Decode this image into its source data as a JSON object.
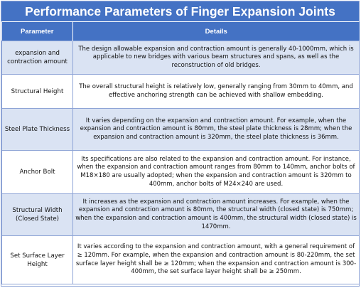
{
  "title": "Performance Parameters of Finger Expansion Joints",
  "table": {
    "headers": [
      "Parameter",
      "Details"
    ],
    "rows": [
      {
        "parameter": "expansion and contraction amount",
        "details": "The design allowable expansion and contraction amount is generally 40-1000mm, which is applicable to new bridges with various beam structures and spans, as well as the reconstruction of old bridges."
      },
      {
        "parameter": "Structural Height",
        "details": "The overall structural height is relatively low, generally ranging from 30mm to 40mm, and effective anchoring strength can be achieved with shallow embedding."
      },
      {
        "parameter": "Steel Plate Thickness",
        "details": "It varies depending on the expansion and contraction amount. For example, when the expansion and contraction amount is 80mm, the steel plate thickness is 28mm; when the expansion and contraction amount is 320mm, the steel plate thickness is 36mm."
      },
      {
        "parameter": "Anchor Bolt",
        "details": "Its specifications are also related to the expansion and contraction amount. For instance, when the expansion and contraction amount ranges from 80mm to 140mm, anchor bolts of M18×180 are usually adopted; when the expansion and contraction amount is 320mm to 400mm, anchor bolts of M24×240 are used."
      },
      {
        "parameter": "Structural Width (Closed State)",
        "details": "It increases as the expansion and contraction amount increases. For example, when the expansion and contraction amount is 80mm, the structural width (closed state) is 750mm; when the expansion and contraction amount is 400mm, the structural width (closed state) is 1470mm."
      },
      {
        "parameter": "Set Surface Layer Height",
        "details": "It varies according to the expansion and contraction amount, with a general requirement of ≥ 120mm. For example, when the expansion and contraction amount is 80-220mm, the set surface layer height shall be ≥ 120mm; when the expansion and contraction amount is 300-400mm, the set surface layer height shall be ≥ 250mm."
      }
    ]
  },
  "colors": {
    "header_blue": "#4472c4",
    "row_alt": "#dae3f3",
    "border": "#8ea4d6"
  }
}
